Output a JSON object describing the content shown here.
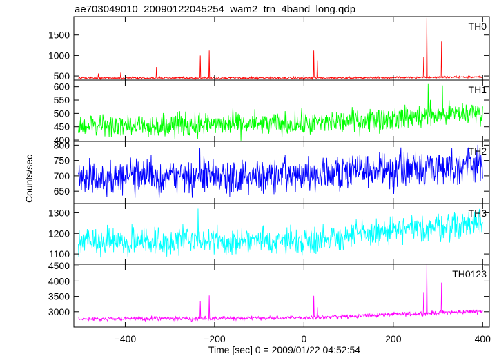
{
  "title": "ae703049010_20090122045254_wam2_trn_4band_long.qdp",
  "xlabel": "Time [sec] 0 = 2009/01/22 04:52:54",
  "ylabel": "Counts/sec",
  "chart_data": {
    "type": "line",
    "title": "ae703049010_20090122045254_wam2_trn_4band_long.qdp",
    "xlabel": "Time [sec] 0 = 2009/01/22 04:52:54",
    "ylabel": "Counts/sec",
    "xlim": [
      -515,
      415
    ],
    "x_ticks": [
      -400,
      -200,
      0,
      200,
      400
    ],
    "x_tick_labels": [
      "−400",
      "−200",
      "0",
      "200",
      "400"
    ],
    "x_step_sec": 1,
    "grid": false,
    "panels": [
      {
        "name": "TH0",
        "color": "#ff0000",
        "ylim": [
          400,
          1950
        ],
        "y_ticks": [
          500,
          1000,
          1500
        ],
        "y_tick_labels": [
          "500",
          "1000",
          "1500"
        ],
        "x_range": [
          -505,
          400
        ],
        "baseline": [
          [
            -505,
            450
          ],
          [
            0,
            450
          ],
          [
            400,
            475
          ]
        ],
        "noise": 12,
        "spikes": [
          [
            -460,
            560
          ],
          [
            -410,
            580
          ],
          [
            -330,
            720
          ],
          [
            -232,
            1000
          ],
          [
            -212,
            1120
          ],
          [
            22,
            1120
          ],
          [
            30,
            880
          ],
          [
            268,
            960
          ],
          [
            275,
            1920
          ],
          [
            308,
            1340
          ]
        ]
      },
      {
        "name": "TH1",
        "color": "#00ff00",
        "ylim": [
          395,
          625
        ],
        "y_ticks": [
          400,
          450,
          500,
          550,
          600
        ],
        "y_tick_labels": [
          "400",
          "450",
          "500",
          "550",
          "600"
        ],
        "x_range": [
          -505,
          400
        ],
        "baseline": [
          [
            -505,
            455
          ],
          [
            0,
            460
          ],
          [
            400,
            505
          ]
        ],
        "noise": 22,
        "spikes": [
          [
            278,
            610
          ],
          [
            310,
            605
          ]
        ]
      },
      {
        "name": "TH2",
        "color": "#0000ff",
        "ylim": [
          610,
          812
        ],
        "y_ticks": [
          650,
          700,
          750,
          800
        ],
        "y_tick_labels": [
          "650",
          "700",
          "750",
          "800"
        ],
        "x_range": [
          -505,
          400
        ],
        "baseline": [
          [
            -505,
            697
          ],
          [
            0,
            700
          ],
          [
            400,
            740
          ]
        ],
        "noise": 28,
        "spikes": [
          [
            -233,
            790
          ]
        ]
      },
      {
        "name": "TH3",
        "color": "#00ffff",
        "ylim": [
          1050,
          1345
        ],
        "y_ticks": [
          1100,
          1200,
          1300
        ],
        "y_tick_labels": [
          "1100",
          "1200",
          "1300"
        ],
        "x_range": [
          -505,
          400
        ],
        "baseline": [
          [
            -505,
            1160
          ],
          [
            0,
            1165
          ],
          [
            400,
            1255
          ]
        ],
        "noise": 33,
        "spikes": [
          [
            -237,
            1320
          ]
        ]
      },
      {
        "name": "TH0123",
        "color": "#ff00ff",
        "ylim": [
          2500,
          4550
        ],
        "y_ticks": [
          3000,
          3500,
          4000,
          4500
        ],
        "y_tick_labels": [
          "3000",
          "3500",
          "4000",
          "4500"
        ],
        "x_range": [
          -505,
          400
        ],
        "baseline": [
          [
            -505,
            2760
          ],
          [
            0,
            2800
          ],
          [
            400,
            3020
          ]
        ],
        "noise": 35,
        "spikes": [
          [
            -232,
            3350
          ],
          [
            -212,
            3530
          ],
          [
            22,
            3520
          ],
          [
            30,
            3150
          ],
          [
            268,
            3640
          ],
          [
            275,
            4550
          ],
          [
            308,
            3950
          ]
        ]
      }
    ]
  }
}
